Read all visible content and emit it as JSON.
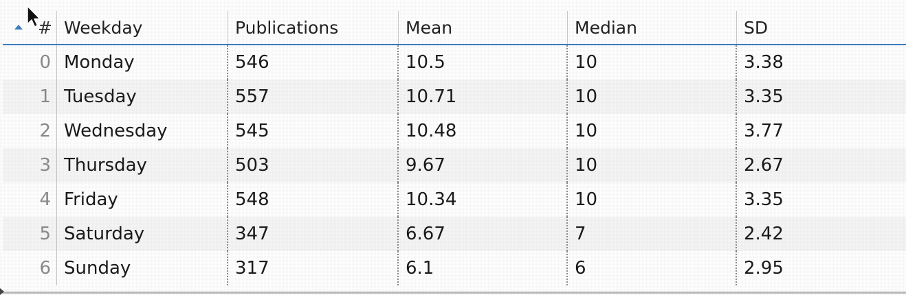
{
  "table": {
    "headers": {
      "index": "#",
      "weekday": "Weekday",
      "publications": "Publications",
      "mean": "Mean",
      "median": "Median",
      "sd": "SD"
    },
    "sort": {
      "column": "index",
      "direction": "ascending",
      "indicator_color": "#3a7bbd"
    },
    "rows": [
      {
        "index": "0",
        "weekday": "Monday",
        "publications": "546",
        "mean": "10.5",
        "median": "10",
        "sd": "3.38"
      },
      {
        "index": "1",
        "weekday": "Tuesday",
        "publications": "557",
        "mean": "10.71",
        "median": "10",
        "sd": "3.35"
      },
      {
        "index": "2",
        "weekday": "Wednesday",
        "publications": "545",
        "mean": "10.48",
        "median": "10",
        "sd": "3.77"
      },
      {
        "index": "3",
        "weekday": "Thursday",
        "publications": "503",
        "mean": "9.67",
        "median": "10",
        "sd": "2.67"
      },
      {
        "index": "4",
        "weekday": "Friday",
        "publications": "548",
        "mean": "10.34",
        "median": "10",
        "sd": "3.35"
      },
      {
        "index": "5",
        "weekday": "Saturday",
        "publications": "347",
        "mean": "6.67",
        "median": "7",
        "sd": "2.42"
      },
      {
        "index": "6",
        "weekday": "Sunday",
        "publications": "317",
        "mean": "6.1",
        "median": "6",
        "sd": "2.95"
      }
    ]
  },
  "icons": {
    "sort": "sort-ascending-icon",
    "cursor": "mouse-pointer-icon"
  }
}
